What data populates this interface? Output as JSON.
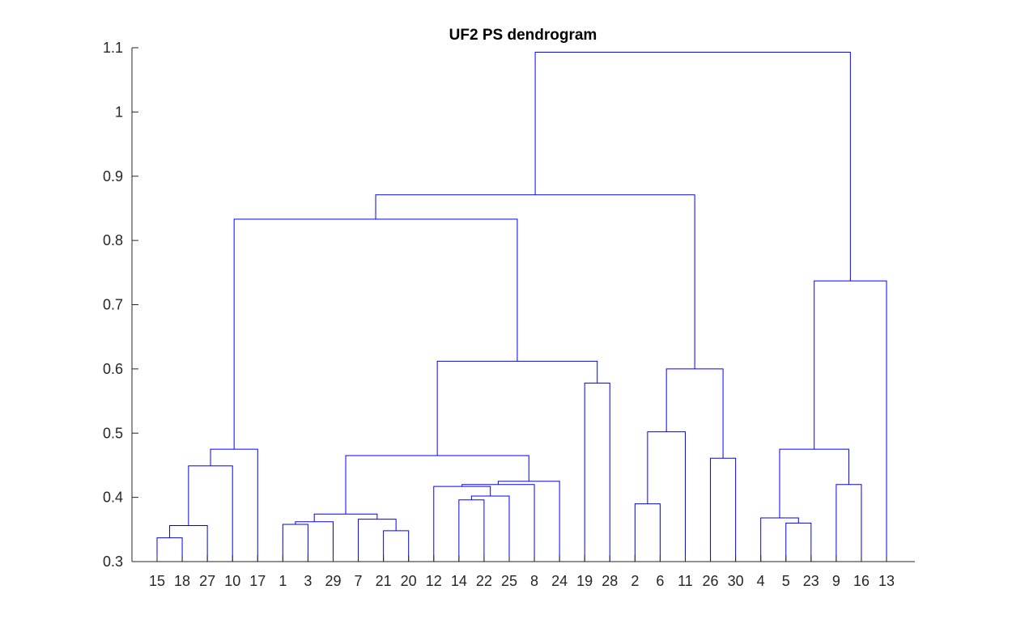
{
  "chart_data": {
    "type": "dendrogram",
    "title": "UF2 PS dendrogram",
    "xlabel": "",
    "ylabel": "",
    "ylim": [
      0.3,
      1.1
    ],
    "yticks": [
      0.3,
      0.4,
      0.5,
      0.6,
      0.7,
      0.8,
      0.9,
      1,
      1.1
    ],
    "leaf_order": [
      "15",
      "18",
      "27",
      "10",
      "17",
      "1",
      "3",
      "29",
      "7",
      "21",
      "20",
      "12",
      "14",
      "22",
      "25",
      "8",
      "24",
      "19",
      "28",
      "2",
      "6",
      "11",
      "26",
      "30",
      "4",
      "5",
      "23",
      "9",
      "16",
      "13"
    ],
    "link_color": "#0000ff",
    "grid": false,
    "merges": [
      {
        "id": "A",
        "left": "15",
        "right": "18",
        "height": 0.337
      },
      {
        "id": "B",
        "left": "A",
        "right": "27",
        "height": 0.356
      },
      {
        "id": "C",
        "left": "B",
        "right": "10",
        "height": 0.449
      },
      {
        "id": "D",
        "left": "C",
        "right": "17",
        "height": 0.475
      },
      {
        "id": "E",
        "left": "1",
        "right": "3",
        "height": 0.358
      },
      {
        "id": "F",
        "left": "E",
        "right": "29",
        "height": 0.362
      },
      {
        "id": "G",
        "left": "21",
        "right": "20",
        "height": 0.348
      },
      {
        "id": "H",
        "left": "7",
        "right": "G",
        "height": 0.366
      },
      {
        "id": "I",
        "left": "F",
        "right": "H",
        "height": 0.374
      },
      {
        "id": "J",
        "left": "14",
        "right": "22",
        "height": 0.396
      },
      {
        "id": "K",
        "left": "J",
        "right": "25",
        "height": 0.402
      },
      {
        "id": "L",
        "left": "12",
        "right": "K",
        "height": 0.417
      },
      {
        "id": "M",
        "left": "L",
        "right": "8",
        "height": 0.42
      },
      {
        "id": "N",
        "left": "M",
        "right": "24",
        "height": 0.425
      },
      {
        "id": "O",
        "left": "I",
        "right": "N",
        "height": 0.465
      },
      {
        "id": "P",
        "left": "19",
        "right": "28",
        "height": 0.578
      },
      {
        "id": "Q",
        "left": "O",
        "right": "P",
        "height": 0.612
      },
      {
        "id": "R",
        "left": "D",
        "right": "Q",
        "height": 0.833
      },
      {
        "id": "S",
        "left": "2",
        "right": "6",
        "height": 0.39
      },
      {
        "id": "T",
        "left": "S",
        "right": "11",
        "height": 0.502
      },
      {
        "id": "U",
        "left": "26",
        "right": "30",
        "height": 0.461
      },
      {
        "id": "V",
        "left": "T",
        "right": "U",
        "height": 0.6
      },
      {
        "id": "W",
        "left": "R",
        "right": "V",
        "height": 0.871
      },
      {
        "id": "X",
        "left": "5",
        "right": "23",
        "height": 0.36
      },
      {
        "id": "Y",
        "left": "4",
        "right": "X",
        "height": 0.368
      },
      {
        "id": "Z",
        "left": "9",
        "right": "16",
        "height": 0.42
      },
      {
        "id": "AA",
        "left": "Y",
        "right": "Z",
        "height": 0.475
      },
      {
        "id": "AB",
        "left": "AA",
        "right": "13",
        "height": 0.737
      },
      {
        "id": "AC",
        "left": "W",
        "right": "AB",
        "height": 1.093
      }
    ]
  }
}
